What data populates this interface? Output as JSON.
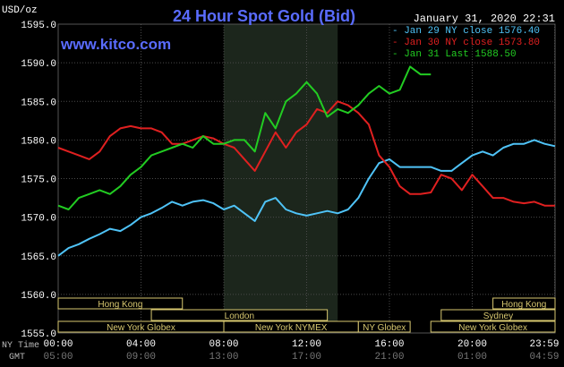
{
  "header": {
    "unit": "USD/oz",
    "title": "24 Hour Spot Gold (Bid)",
    "date": "January 31, 2020 22:31",
    "website": "www.kitco.com"
  },
  "legend": [
    {
      "label": "Jan 29 NY close 1576.40",
      "color": "#4fc3f7"
    },
    {
      "label": "Jan 30 NY close 1573.80",
      "color": "#e02020"
    },
    {
      "label": "Jan 31 Last 1588.50",
      "color": "#22cc22"
    }
  ],
  "market_sessions": [
    {
      "label": "Hong Kong",
      "start": 0.0,
      "end": 6.0,
      "row": 1
    },
    {
      "label": "London",
      "start": 4.5,
      "end": 13.0,
      "row": 2
    },
    {
      "label": "New York Globex",
      "start": 0.0,
      "end": 8.0,
      "row": 3
    },
    {
      "label": "New York NYMEX",
      "start": 8.0,
      "end": 14.5,
      "row": 3
    },
    {
      "label": "NY Globex",
      "start": 14.5,
      "end": 17.0,
      "row": 3
    },
    {
      "label": "Hong Kong",
      "start": 21.0,
      "end": 24.0,
      "row": 1
    },
    {
      "label": "Sydney",
      "start": 18.5,
      "end": 24.0,
      "row": 2
    },
    {
      "label": "New York Globex",
      "start": 18.0,
      "end": 24.0,
      "row": 3
    }
  ],
  "time_axis": {
    "ny_label": "NY Time",
    "gmt_label": "GMT",
    "ny_ticks": [
      "00:00",
      "04:00",
      "08:00",
      "12:00",
      "16:00",
      "20:00",
      "23:59"
    ],
    "gmt_ticks": [
      "05:00",
      "09:00",
      "13:00",
      "17:00",
      "21:00",
      "01:00",
      "04:59"
    ]
  },
  "chart_data": {
    "type": "line",
    "title": "24 Hour Spot Gold (Bid)",
    "ylabel": "USD/oz",
    "ylim": [
      1555,
      1595
    ],
    "yticks": [
      "1595.0",
      "1590.0",
      "1585.0",
      "1580.0",
      "1575.0",
      "1570.0",
      "1565.0",
      "1560.0",
      "1555.0"
    ],
    "xlim": [
      0,
      24
    ],
    "shaded_hours": [
      8.0,
      13.5
    ],
    "grid": true,
    "series": [
      {
        "name": "Jan 29 NY close 1576.40",
        "color": "#4fc3f7",
        "x": [
          0,
          0.5,
          1,
          1.5,
          2,
          2.5,
          3,
          3.5,
          4,
          4.5,
          5,
          5.5,
          6,
          6.5,
          7,
          7.5,
          8,
          8.5,
          9,
          9.5,
          10,
          10.5,
          11,
          11.5,
          12,
          12.5,
          13,
          13.5,
          14,
          14.5,
          15,
          15.5,
          16,
          16.5,
          17,
          17.5,
          18,
          18.5,
          19,
          19.5,
          20,
          20.5,
          21,
          21.5,
          22,
          22.5,
          23,
          23.5,
          24
        ],
        "y": [
          1565.0,
          1566.0,
          1566.5,
          1567.2,
          1567.8,
          1568.5,
          1568.2,
          1569.0,
          1570.0,
          1570.5,
          1571.2,
          1572.0,
          1571.5,
          1572.0,
          1572.2,
          1571.8,
          1571.0,
          1571.5,
          1570.5,
          1569.5,
          1572.0,
          1572.5,
          1571.0,
          1570.5,
          1570.2,
          1570.5,
          1570.8,
          1570.5,
          1571.0,
          1572.5,
          1575.0,
          1577.0,
          1577.5,
          1576.5,
          1576.5,
          1576.5,
          1576.5,
          1576.0,
          1576.0,
          1577.0,
          1578.0,
          1578.5,
          1578.0,
          1579.0,
          1579.5,
          1579.5,
          1580.0,
          1579.5,
          1579.2
        ]
      },
      {
        "name": "Jan 30 NY close 1573.80",
        "color": "#e02020",
        "x": [
          0,
          0.5,
          1,
          1.5,
          2,
          2.5,
          3,
          3.5,
          4,
          4.5,
          5,
          5.5,
          6,
          6.5,
          7,
          7.5,
          8,
          8.5,
          9,
          9.5,
          10,
          10.5,
          11,
          11.5,
          12,
          12.5,
          13,
          13.5,
          14,
          14.5,
          15,
          15.5,
          16,
          16.5,
          17,
          17.5,
          18,
          18.5,
          19,
          19.5,
          20,
          20.5,
          21,
          21.5,
          22,
          22.5,
          23,
          23.5,
          24
        ],
        "y": [
          1579.0,
          1578.5,
          1578.0,
          1577.5,
          1578.5,
          1580.5,
          1581.5,
          1581.8,
          1581.5,
          1581.5,
          1581.0,
          1579.5,
          1579.5,
          1580.0,
          1580.5,
          1580.2,
          1579.5,
          1579.0,
          1577.5,
          1576.0,
          1578.5,
          1581.0,
          1579.0,
          1581.0,
          1582.0,
          1584.0,
          1583.5,
          1585.0,
          1584.5,
          1583.5,
          1582.0,
          1578.0,
          1576.5,
          1574.0,
          1573.0,
          1573.0,
          1573.2,
          1575.5,
          1575.0,
          1573.5,
          1575.5,
          1574.0,
          1572.5,
          1572.5,
          1572.0,
          1571.8,
          1572.0,
          1571.5,
          1571.5
        ]
      },
      {
        "name": "Jan 31 Last 1588.50",
        "color": "#22cc22",
        "x": [
          0,
          0.5,
          1,
          1.5,
          2,
          2.5,
          3,
          3.5,
          4,
          4.5,
          5,
          5.5,
          6,
          6.5,
          7,
          7.5,
          8,
          8.5,
          9,
          9.5,
          10,
          10.5,
          11,
          11.5,
          12,
          12.5,
          13,
          13.5,
          14,
          14.5,
          15,
          15.5,
          16,
          16.5,
          17,
          17.5,
          18
        ],
        "y": [
          1571.5,
          1571.0,
          1572.5,
          1573.0,
          1573.5,
          1573.0,
          1574.0,
          1575.5,
          1576.5,
          1578.0,
          1578.5,
          1579.0,
          1579.5,
          1579.0,
          1580.5,
          1579.5,
          1579.5,
          1580.0,
          1580.0,
          1578.5,
          1583.5,
          1581.5,
          1585.0,
          1586.0,
          1587.5,
          1586.0,
          1583.0,
          1584.0,
          1583.5,
          1584.5,
          1586.0,
          1587.0,
          1586.0,
          1586.5,
          1589.5,
          1588.5,
          1588.5
        ]
      }
    ]
  }
}
